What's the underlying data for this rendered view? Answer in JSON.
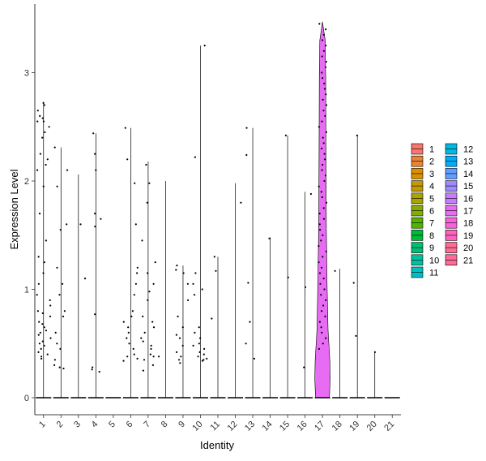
{
  "chart_data": {
    "type": "violin",
    "xlabel": "Identity",
    "ylabel": "Expression Level",
    "categories": [
      "1",
      "2",
      "3",
      "4",
      "5",
      "6",
      "7",
      "8",
      "9",
      "10",
      "11",
      "12",
      "13",
      "14",
      "15",
      "16",
      "17",
      "18",
      "19",
      "20",
      "21"
    ],
    "ylim": [
      -0.15,
      3.5
    ],
    "yticks": [
      0,
      1,
      2,
      3
    ],
    "grid": false,
    "legend": {
      "placement": "right",
      "columns": 2
    },
    "colors": [
      "#F8766D",
      "#EB8335",
      "#DA8F00",
      "#C49A00",
      "#A9A400",
      "#86AC00",
      "#53B400",
      "#00BA38",
      "#00BF74",
      "#00C19F",
      "#00BFC4",
      "#00B9E3",
      "#00ADFA",
      "#619CFF",
      "#9E8AFF",
      "#C77CFF",
      "#E76BF3",
      "#FA62DB",
      "#FF62BC",
      "#FF6C91",
      "#FF6A98"
    ],
    "series": [
      {
        "name": "1",
        "max": 2.73,
        "points": [
          2.72,
          2.7,
          2.65,
          2.6,
          2.58,
          2.55,
          2.55,
          2.5,
          2.45,
          2.4,
          2.25,
          2.2,
          2.15,
          2.1,
          1.95,
          1.7,
          1.45,
          1.3,
          1.25,
          1.15,
          1.05,
          0.95,
          0.9,
          0.85,
          0.8,
          0.78,
          0.75,
          0.7,
          0.68,
          0.65,
          0.62,
          0.6,
          0.58,
          0.55,
          0.52,
          0.5,
          0.48,
          0.45,
          0.42,
          0.4,
          0.38,
          0.36
        ]
      },
      {
        "name": "2",
        "max": 2.31,
        "points": [
          2.31,
          2.1,
          1.95,
          1.6,
          1.55,
          1.2,
          1.05,
          0.95,
          0.8,
          0.75,
          0.6,
          0.5,
          0.45,
          0.35,
          0.3,
          0.28,
          0.27
        ]
      },
      {
        "name": "3",
        "max": 2.06,
        "points": [
          1.6,
          1.1
        ]
      },
      {
        "name": "4",
        "max": 2.44,
        "points": [
          2.44,
          2.25,
          2.1,
          1.7,
          1.65,
          1.58,
          0.77,
          0.28,
          0.26,
          0.24
        ]
      },
      {
        "name": "5",
        "max": 0,
        "points": []
      },
      {
        "name": "6",
        "max": 2.49,
        "points": [
          2.49,
          2.2,
          1.98,
          1.6,
          1.2,
          1.15,
          1.05,
          0.95,
          0.8,
          0.75,
          0.7,
          0.65,
          0.6,
          0.55,
          0.5,
          0.45,
          0.4,
          0.38,
          0.36,
          0.34
        ]
      },
      {
        "name": "7",
        "max": 2.18,
        "points": [
          2.15,
          1.98,
          1.8,
          1.45,
          1.25,
          1.15,
          1.05,
          0.98,
          0.9,
          0.75,
          0.7,
          0.65,
          0.6,
          0.55,
          0.52,
          0.48,
          0.45,
          0.4,
          0.38,
          0.35,
          0.3,
          0.25
        ]
      },
      {
        "name": "8",
        "max": 2.0,
        "points": [
          0.38
        ]
      },
      {
        "name": "9",
        "max": 1.22,
        "points": [
          1.22,
          1.18,
          1.15,
          1.05,
          0.9,
          0.75,
          0.65,
          0.58,
          0.55,
          0.48,
          0.42,
          0.38,
          0.35,
          0.32
        ]
      },
      {
        "name": "10",
        "max": 3.25,
        "points": [
          3.25,
          2.22,
          1.15,
          1.05,
          1.0,
          0.95,
          0.65,
          0.6,
          0.55,
          0.5,
          0.48,
          0.45,
          0.42,
          0.4,
          0.38,
          0.36,
          0.35,
          0.34
        ]
      },
      {
        "name": "11",
        "max": 1.3,
        "points": [
          1.3,
          1.17,
          0.73
        ]
      },
      {
        "name": "12",
        "max": 1.98,
        "points": [
          1.8
        ]
      },
      {
        "name": "13",
        "max": 2.49,
        "points": [
          2.49,
          2.24,
          1.06,
          0.7,
          0.5,
          0.36
        ]
      },
      {
        "name": "14",
        "max": 1.48,
        "points": [
          1.47
        ]
      },
      {
        "name": "15",
        "max": 2.42,
        "points": [
          2.42,
          1.11
        ]
      },
      {
        "name": "16",
        "max": 1.9,
        "points": [
          1.88,
          1.02,
          0.28
        ]
      },
      {
        "name": "17",
        "max": 3.47,
        "violin": true,
        "points": [
          3.45,
          3.4,
          3.35,
          3.3,
          3.25,
          3.2,
          3.15,
          3.1,
          3.05,
          3.0,
          2.95,
          2.9,
          2.85,
          2.8,
          2.75,
          2.7,
          2.65,
          2.6,
          2.55,
          2.5,
          2.45,
          2.4,
          2.35,
          2.3,
          2.25,
          2.2,
          2.15,
          2.1,
          2.05,
          2.0,
          1.95,
          1.9,
          1.85,
          1.8,
          1.75,
          1.7,
          1.65,
          1.6,
          1.55,
          1.5,
          1.45,
          1.4,
          1.35,
          1.3,
          1.25,
          1.2,
          1.15,
          1.1,
          1.05,
          1.0,
          0.95,
          0.9,
          0.85,
          0.8,
          0.75,
          0.7,
          0.65,
          0.6,
          0.55,
          0.5,
          0.45
        ]
      },
      {
        "name": "18",
        "max": 1.19,
        "points": [
          1.17
        ]
      },
      {
        "name": "19",
        "max": 2.42,
        "points": [
          2.42,
          1.06,
          0.57
        ]
      },
      {
        "name": "20",
        "max": 0.42,
        "points": [
          0.42
        ]
      },
      {
        "name": "21",
        "max": 0,
        "points": []
      }
    ]
  }
}
